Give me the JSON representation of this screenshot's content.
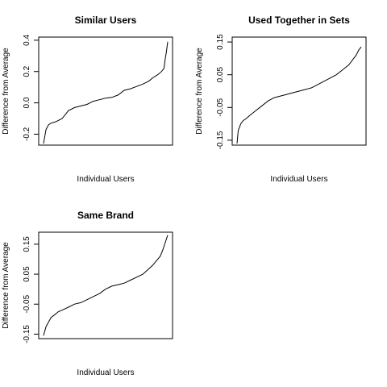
{
  "chart_data": [
    {
      "type": "line",
      "title": "Similar Users",
      "xlabel": "Individual Users",
      "ylabel": "Difference from Average",
      "ylim": [
        -0.27,
        0.42
      ],
      "yticks": [
        -0.2,
        0.0,
        0.2,
        0.4
      ],
      "ytick_labels": [
        "-0.2",
        "0.0",
        "0.2",
        "0.4"
      ],
      "grid": false,
      "x": [
        0,
        2,
        4,
        6,
        10,
        15,
        20,
        25,
        30,
        35,
        40,
        45,
        50,
        55,
        60,
        65,
        70,
        75,
        80,
        85,
        88,
        92,
        95,
        97,
        98,
        99,
        100
      ],
      "y": [
        -0.26,
        -0.17,
        -0.14,
        -0.13,
        -0.12,
        -0.1,
        -0.05,
        -0.03,
        -0.02,
        -0.01,
        0.01,
        0.02,
        0.03,
        0.035,
        0.05,
        0.08,
        0.09,
        0.105,
        0.12,
        0.14,
        0.16,
        0.18,
        0.2,
        0.22,
        0.28,
        0.33,
        0.39
      ]
    },
    {
      "type": "line",
      "title": "Used Together in Sets",
      "xlabel": "Individual Users",
      "ylabel": "Difference from Average",
      "ylim": [
        -0.165,
        0.165
      ],
      "yticks": [
        -0.15,
        -0.05,
        0.05,
        0.15
      ],
      "ytick_labels": [
        "-0.15",
        "-0.05",
        "0.05",
        "0.15"
      ],
      "grid": false,
      "x": [
        0,
        1,
        2,
        3,
        5,
        7,
        10,
        15,
        20,
        25,
        30,
        35,
        40,
        45,
        50,
        55,
        60,
        65,
        70,
        75,
        80,
        85,
        90,
        93,
        96,
        98,
        100
      ],
      "y": [
        -0.16,
        -0.12,
        -0.11,
        -0.1,
        -0.09,
        -0.085,
        -0.075,
        -0.06,
        -0.045,
        -0.03,
        -0.02,
        -0.015,
        -0.01,
        -0.005,
        0.0,
        0.005,
        0.01,
        0.02,
        0.03,
        0.04,
        0.05,
        0.065,
        0.08,
        0.095,
        0.11,
        0.125,
        0.135
      ]
    },
    {
      "type": "line",
      "title": "Same Brand",
      "xlabel": "Individual Users",
      "ylabel": "Difference from Average",
      "ylim": [
        -0.165,
        0.19
      ],
      "yticks": [
        -0.15,
        -0.05,
        0.05,
        0.15
      ],
      "ytick_labels": [
        "-0.15",
        "-0.05",
        "0.05",
        "0.15"
      ],
      "grid": false,
      "x": [
        0,
        2,
        4,
        6,
        9,
        12,
        15,
        20,
        25,
        30,
        35,
        40,
        45,
        50,
        55,
        60,
        65,
        70,
        75,
        80,
        84,
        88,
        91,
        94,
        96,
        98,
        100
      ],
      "y": [
        -0.155,
        -0.125,
        -0.11,
        -0.095,
        -0.085,
        -0.075,
        -0.07,
        -0.06,
        -0.05,
        -0.045,
        -0.035,
        -0.025,
        -0.015,
        0.0,
        0.01,
        0.015,
        0.02,
        0.03,
        0.04,
        0.05,
        0.065,
        0.08,
        0.095,
        0.11,
        0.13,
        0.155,
        0.18
      ]
    }
  ]
}
